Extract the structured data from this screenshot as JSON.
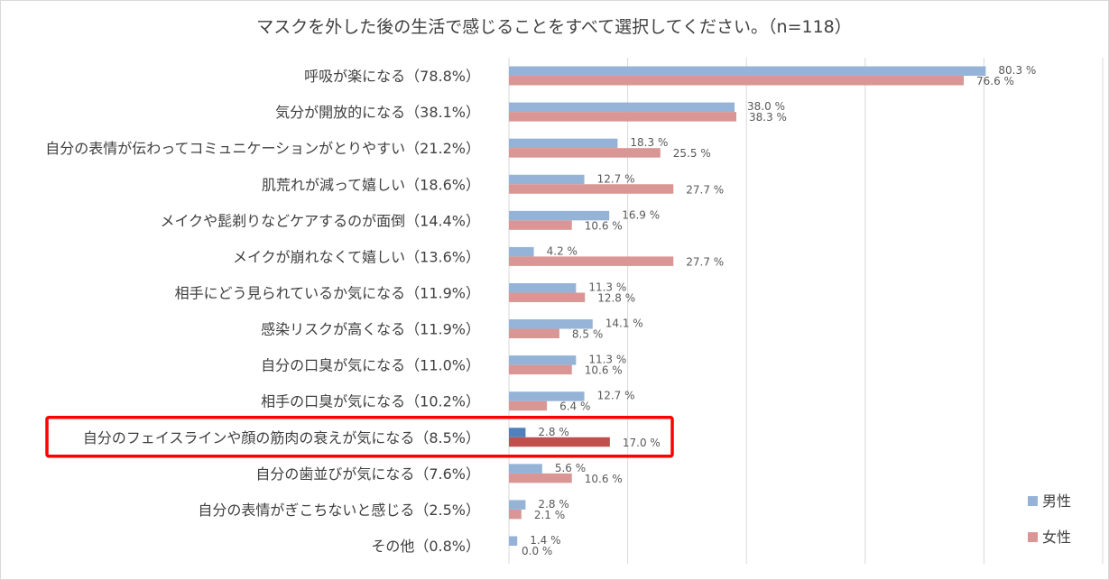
{
  "chart_data": {
    "type": "bar",
    "orientation": "horizontal",
    "title": "マスクを外した後の生活で感じることをすべて選択してください。（n=118）",
    "categories": [
      "呼吸が楽になる（78.8%）",
      "気分が開放的になる（38.1%）",
      "自分の表情が伝わってコミュニケーションがとりやすい（21.2%）",
      "肌荒れが減って嬉しい（18.6%）",
      "メイクや髭剃りなどケアするのが面倒（14.4%）",
      "メイクが崩れなくて嬉しい（13.6%）",
      "相手にどう見られているか気になる（11.9%）",
      "感染リスクが高くなる（11.9%）",
      "自分の口臭が気になる（11.0%）",
      "相手の口臭が気になる（10.2%）",
      "自分のフェイスラインや顔の筋肉の衰えが気になる（8.5%）",
      "自分の歯並びが気になる（7.6%）",
      "自分の表情がぎこちないと感じる（2.5%）",
      "その他（0.8%）"
    ],
    "series": [
      {
        "name": "男性",
        "color": "#95b3d7",
        "highlight_color": "#4f81bd",
        "values": [
          80.3,
          38.0,
          18.3,
          12.7,
          16.9,
          4.2,
          11.3,
          14.1,
          11.3,
          12.7,
          2.8,
          5.6,
          2.8,
          1.4
        ],
        "labels": [
          "80.3 %",
          "38.0 %",
          "18.3 %",
          "12.7 %",
          "16.9 %",
          "4.2 %",
          "11.3 %",
          "14.1 %",
          "11.3 %",
          "12.7 %",
          "2.8 %",
          "5.6 %",
          "2.8 %",
          "1.4 %"
        ]
      },
      {
        "name": "女性",
        "color": "#d99694",
        "highlight_color": "#c0504d",
        "values": [
          76.6,
          38.3,
          25.5,
          27.7,
          10.6,
          27.7,
          12.8,
          8.5,
          10.6,
          6.4,
          17.0,
          10.6,
          2.1,
          0.0
        ],
        "labels": [
          "76.6 %",
          "38.3 %",
          "25.5 %",
          "27.7 %",
          "10.6 %",
          "27.7 %",
          "12.8 %",
          "8.5 %",
          "10.6 %",
          "6.4 %",
          "17.0 %",
          "10.6 %",
          "2.1 %",
          "0.0 %"
        ]
      }
    ],
    "highlighted_category_index": 10,
    "highlight_box_color": "#ff0000",
    "xlim": [
      0,
      100
    ],
    "x_gridlines": [
      0,
      20,
      40,
      60,
      80,
      100
    ],
    "grid": true,
    "legend_position": "bottom-right",
    "gridline_color": "#d9d9d9"
  }
}
